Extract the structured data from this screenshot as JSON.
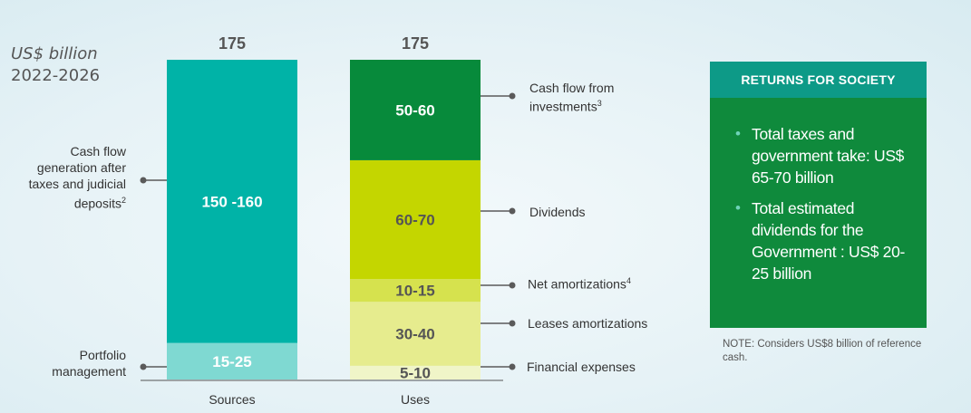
{
  "unit_label": {
    "line1": "US$ billion",
    "line2": "2022-2026"
  },
  "chart_data": {
    "type": "stacked-bar",
    "title": "",
    "categories": [
      "Sources",
      "Uses"
    ],
    "ylim": [
      0,
      175
    ],
    "totals": [
      {
        "category": "Sources",
        "value": 175,
        "label": "175"
      },
      {
        "category": "Uses",
        "value": 175,
        "label": "175"
      }
    ],
    "bars": [
      {
        "category": "Sources",
        "segments": [
          {
            "name": "Portfolio management",
            "display": "15-25",
            "value": 20,
            "color": "#7fd9d2",
            "text_color": "#ffffff"
          },
          {
            "name": "Cash flow generation after taxes and judicial deposits",
            "note": "2",
            "display": "150 -160",
            "value": 155,
            "color": "#00b3a7",
            "text_color": "#ffffff"
          }
        ]
      },
      {
        "category": "Uses",
        "segments": [
          {
            "name": "Financial  expenses",
            "display": "5-10",
            "value": 7.5,
            "color": "#f0f5c8",
            "text_color": "#555555"
          },
          {
            "name": "Leases amortizations",
            "display": "30-40",
            "value": 35,
            "color": "#e6ec8e",
            "text_color": "#555555"
          },
          {
            "name": "Net amortizations",
            "note": "4",
            "display": "10-15",
            "value": 12.5,
            "color": "#d6e24e",
            "text_color": "#555555"
          },
          {
            "name": "Dividends",
            "display": "60-70",
            "value": 65,
            "color": "#c4d600",
            "text_color": "#555555"
          },
          {
            "name": "Cash flow from investments",
            "note": "3",
            "display": "50-60",
            "value": 55,
            "color": "#078a3b",
            "text_color": "#ffffff"
          }
        ]
      }
    ]
  },
  "labels": {
    "left": {
      "cash_flow_gen": [
        "Cash flow",
        "generation after",
        "taxes and judicial",
        "deposits"
      ],
      "cash_flow_gen_note": "2",
      "portfolio": [
        "Portfolio",
        "management"
      ]
    },
    "right": {
      "cf_investments": [
        "Cash flow from",
        "investments"
      ],
      "cf_investments_note": "3",
      "dividends": "Dividends",
      "net_amort": "Net amortizations",
      "net_amort_note": "4",
      "leases": "Leases amortizations",
      "financial": "Financial  expenses"
    }
  },
  "returns": {
    "header": "RETURNS FOR SOCIETY",
    "items": [
      "Total taxes and government take: US$  65-70 billion",
      "Total estimated dividends for the Government : US$ 20-25 billion"
    ],
    "bullet": "•"
  },
  "note": "NOTE: Considers US$8 billion of reference cash.",
  "colors": {
    "connector": "#5a5a5a",
    "returns_header": "#0d9a87",
    "returns_body": "#0f8a3c"
  }
}
